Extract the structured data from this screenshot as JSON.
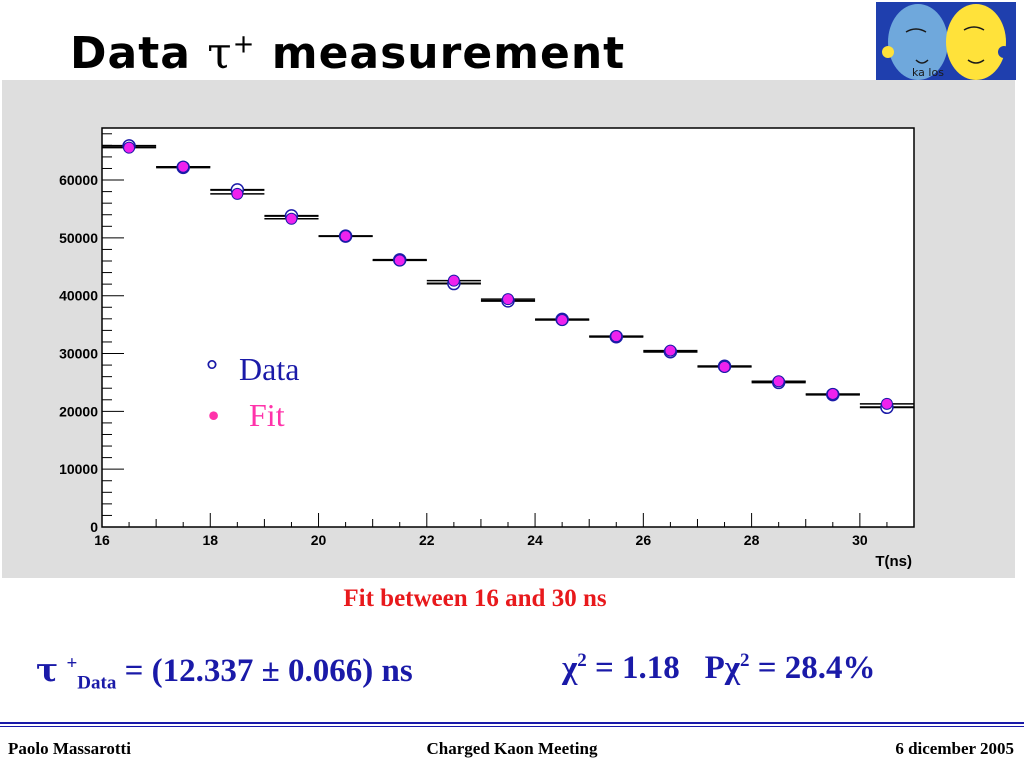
{
  "slide": {
    "title_prefix": "Data ",
    "title_symbol": "τ",
    "title_sup": "+",
    "title_suffix": " measurement"
  },
  "chart_data": {
    "type": "scatter",
    "xlabel": "T(ns)",
    "ylabel": "",
    "xlim": [
      16,
      31
    ],
    "ylim": [
      0,
      69000
    ],
    "x_ticks": [
      16,
      18,
      20,
      22,
      24,
      26,
      28,
      30
    ],
    "y_ticks": [
      0,
      10000,
      20000,
      30000,
      40000,
      50000,
      60000
    ],
    "bin_width": 1,
    "series": [
      {
        "name": "Data",
        "marker": "hollow-circle",
        "color": "#1a1aa8",
        "x": [
          16.5,
          17.5,
          18.5,
          19.5,
          20.5,
          21.5,
          22.5,
          23.5,
          24.5,
          25.5,
          26.5,
          27.5,
          28.5,
          29.5,
          30.5
        ],
        "values": [
          65900,
          62200,
          58300,
          53800,
          50300,
          46200,
          42100,
          39100,
          35900,
          32900,
          30300,
          27800,
          25000,
          22900,
          20700
        ]
      },
      {
        "name": "Fit",
        "marker": "filled-circle",
        "color": "#ee22ee",
        "x": [
          16.5,
          17.5,
          18.5,
          19.5,
          20.5,
          21.5,
          22.5,
          23.5,
          24.5,
          25.5,
          26.5,
          27.5,
          28.5,
          29.5,
          30.5
        ],
        "values": [
          65600,
          62300,
          57600,
          53300,
          50300,
          46100,
          42600,
          39400,
          35800,
          33000,
          30500,
          27700,
          25200,
          23000,
          21300
        ]
      }
    ],
    "legend": {
      "position": "center-left",
      "items": [
        {
          "symbol": "°",
          "label": "Data",
          "color": "#1a1aa8"
        },
        {
          "symbol": "•",
          "label": "Fit",
          "color": "#ff33aa"
        }
      ]
    }
  },
  "annotation": "Fit between 16 and 30 ns",
  "result": {
    "tau_symbol": "τ",
    "tau_sup": "+",
    "tau_sub": "Data",
    "tau_value": " = (12.337 ± 0.066) ns",
    "chi2_symbol": "χ",
    "chi2_sup": "2",
    "chi2_value": " = 1.18",
    "pchi2_prefix": "Pχ",
    "pchi2_sup": "2",
    "pchi2_value": " = 28.4%"
  },
  "footer": {
    "left": "Paolo Massarotti",
    "center": "Charged Kaon Meeting",
    "right": "6 dicember 2005"
  },
  "logo": {
    "text": "ka los",
    "bg_color": "#1f3fae",
    "face_color": "#ffe23a"
  }
}
